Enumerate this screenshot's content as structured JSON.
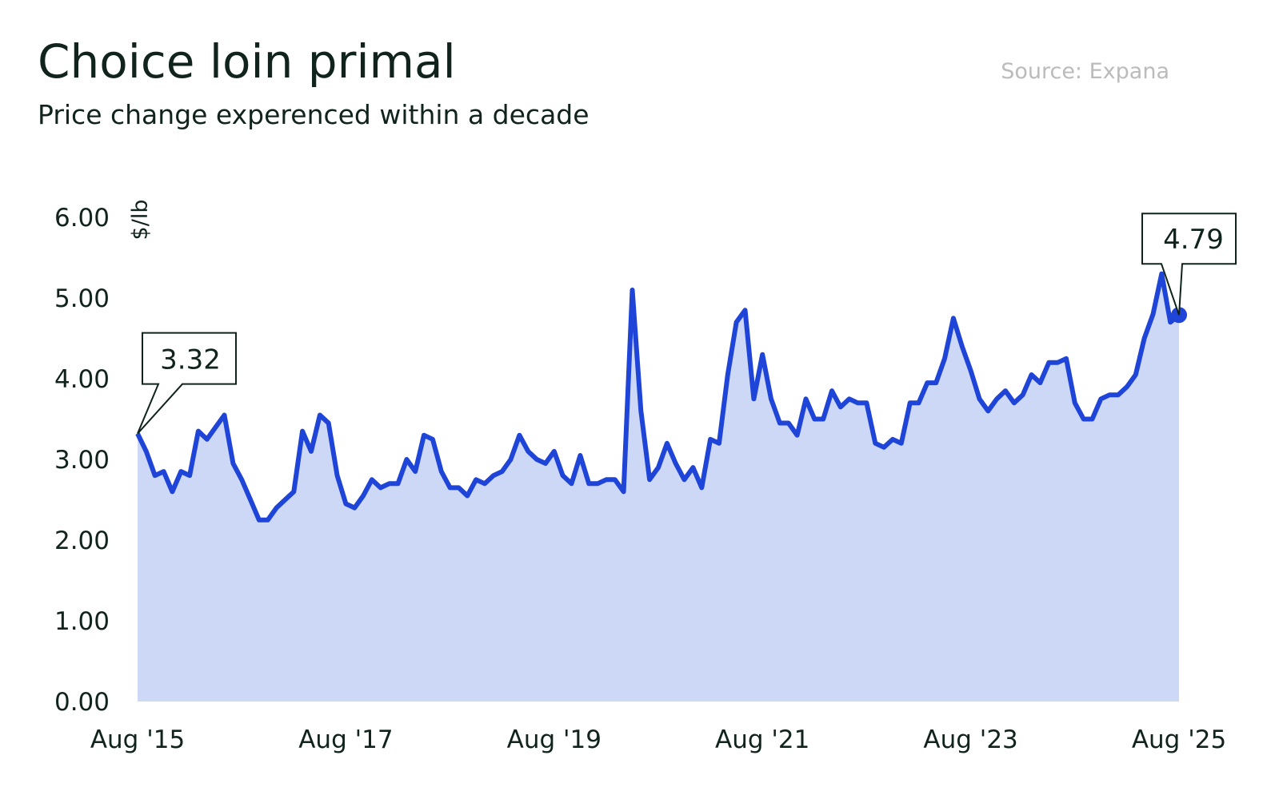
{
  "chart_data": {
    "type": "area",
    "title": "Choice loin primal",
    "subtitle": "Price change experenced within a decade",
    "source": "Source: Expana",
    "y_label": "$/lb",
    "categories": [
      "Aug '15",
      null,
      null,
      null,
      null,
      null,
      null,
      null,
      null,
      null,
      null,
      null,
      null,
      null,
      null,
      null,
      null,
      null,
      null,
      null,
      null,
      null,
      null,
      null,
      "Aug '17",
      null,
      null,
      null,
      null,
      null,
      null,
      null,
      null,
      null,
      null,
      null,
      null,
      null,
      null,
      null,
      null,
      null,
      null,
      null,
      null,
      null,
      null,
      null,
      "Aug '19",
      null,
      null,
      null,
      null,
      null,
      null,
      null,
      null,
      null,
      null,
      null,
      null,
      null,
      null,
      null,
      null,
      null,
      null,
      null,
      null,
      null,
      null,
      null,
      "Aug '21",
      null,
      null,
      null,
      null,
      null,
      null,
      null,
      null,
      null,
      null,
      null,
      null,
      null,
      null,
      null,
      null,
      null,
      null,
      null,
      null,
      null,
      null,
      null,
      "Aug '23",
      null,
      null,
      null,
      null,
      null,
      null,
      null,
      null,
      null,
      null,
      null,
      null,
      null,
      null,
      null,
      null,
      null,
      null,
      null,
      null,
      null,
      null,
      null,
      "Aug '25"
    ],
    "series": [
      {
        "name": "Choice loin primal",
        "color": "#1f44d8",
        "fill": "#cdd8f7",
        "values": [
          3.32,
          3.1,
          2.8,
          2.85,
          2.6,
          2.85,
          2.8,
          3.35,
          3.25,
          3.4,
          3.55,
          2.95,
          2.75,
          2.5,
          2.25,
          2.25,
          2.4,
          2.5,
          2.6,
          3.35,
          3.1,
          3.55,
          3.45,
          2.8,
          2.45,
          2.4,
          2.55,
          2.75,
          2.65,
          2.7,
          2.7,
          3.0,
          2.85,
          3.3,
          3.25,
          2.85,
          2.65,
          2.65,
          2.55,
          2.75,
          2.7,
          2.8,
          2.85,
          3.0,
          3.3,
          3.1,
          3.0,
          2.95,
          3.1,
          2.8,
          2.7,
          3.05,
          2.7,
          2.7,
          2.75,
          2.75,
          2.6,
          5.1,
          3.6,
          2.75,
          2.9,
          3.2,
          2.95,
          2.75,
          2.9,
          2.65,
          3.25,
          3.2,
          4.05,
          4.7,
          4.85,
          3.75,
          4.3,
          3.75,
          3.45,
          3.45,
          3.3,
          3.75,
          3.5,
          3.5,
          3.85,
          3.65,
          3.75,
          3.7,
          3.7,
          3.2,
          3.15,
          3.25,
          3.2,
          3.7,
          3.7,
          3.95,
          3.95,
          4.25,
          4.75,
          4.4,
          4.1,
          3.75,
          3.6,
          3.75,
          3.85,
          3.7,
          3.8,
          4.05,
          3.95,
          4.2,
          4.2,
          4.25,
          3.7,
          3.5,
          3.5,
          3.75,
          3.8,
          3.8,
          3.9,
          4.05,
          4.5,
          4.8,
          5.3,
          4.7,
          4.79
        ]
      }
    ],
    "ylim": [
      0,
      6
    ],
    "yticks": [
      {
        "value": 0,
        "label": "0.00"
      },
      {
        "value": 1,
        "label": "1.00"
      },
      {
        "value": 2,
        "label": "2.00"
      },
      {
        "value": 3,
        "label": "3.00"
      },
      {
        "value": 4,
        "label": "4.00"
      },
      {
        "value": 5,
        "label": "5.00"
      },
      {
        "value": 6,
        "label": "6.00"
      }
    ]
  }
}
